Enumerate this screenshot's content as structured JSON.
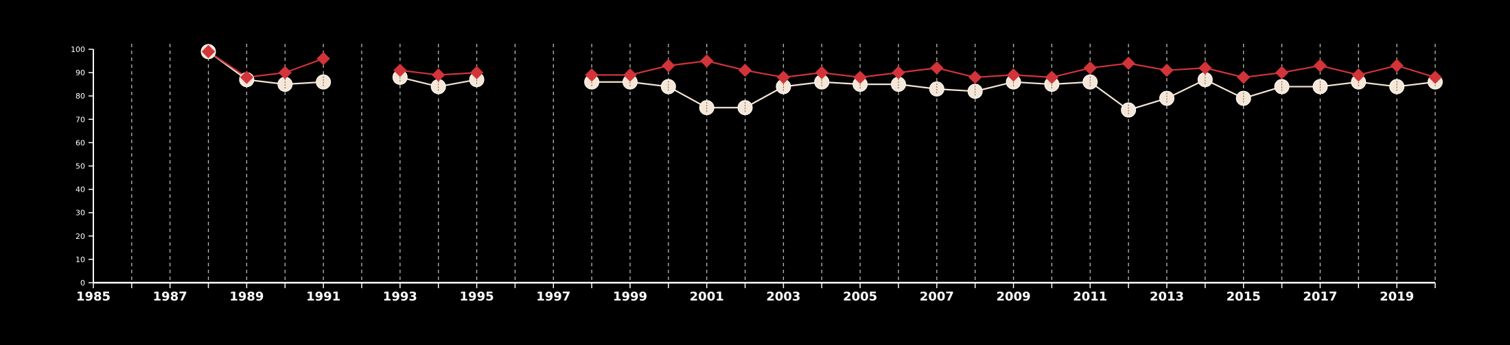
{
  "chart_data": {
    "type": "line",
    "title": "",
    "xlabel": "",
    "ylabel": "",
    "xlim": [
      1985,
      2020
    ],
    "ylim": [
      0,
      100
    ],
    "x_tick_labels": [
      "1985",
      "1987",
      "1989",
      "1991",
      "1993",
      "1995",
      "1997",
      "1999",
      "2001",
      "2003",
      "2005",
      "2007",
      "2009",
      "2011",
      "2013",
      "2015",
      "2017",
      "2019"
    ],
    "y_tick_labels": [
      "0",
      "10",
      "20",
      "30",
      "40",
      "50",
      "60",
      "70",
      "80",
      "90",
      "100"
    ],
    "grid": "vertical dashed lines at each year",
    "legend": "none",
    "series": [
      {
        "marker": "diamond",
        "color": "#d2343a",
        "points": [
          {
            "x": 1988,
            "y": 99
          },
          {
            "x": 1989,
            "y": 88
          },
          {
            "x": 1990,
            "y": 90
          },
          {
            "x": 1991,
            "y": 96
          },
          {
            "x": 1992,
            "y": null
          },
          {
            "x": 1993,
            "y": 91
          },
          {
            "x": 1994,
            "y": 89
          },
          {
            "x": 1995,
            "y": 90
          },
          {
            "x": 1996,
            "y": null
          },
          {
            "x": 1997,
            "y": null
          },
          {
            "x": 1998,
            "y": 89
          },
          {
            "x": 1999,
            "y": 89
          },
          {
            "x": 2000,
            "y": 93
          },
          {
            "x": 2001,
            "y": 95
          },
          {
            "x": 2002,
            "y": 91
          },
          {
            "x": 2003,
            "y": 88
          },
          {
            "x": 2004,
            "y": 90
          },
          {
            "x": 2005,
            "y": 88
          },
          {
            "x": 2006,
            "y": 90
          },
          {
            "x": 2007,
            "y": 92
          },
          {
            "x": 2008,
            "y": 88
          },
          {
            "x": 2009,
            "y": 89
          },
          {
            "x": 2010,
            "y": 88
          },
          {
            "x": 2011,
            "y": 92
          },
          {
            "x": 2012,
            "y": 94
          },
          {
            "x": 2013,
            "y": 91
          },
          {
            "x": 2014,
            "y": 92
          },
          {
            "x": 2015,
            "y": 88
          },
          {
            "x": 2016,
            "y": 90
          },
          {
            "x": 2017,
            "y": 93
          },
          {
            "x": 2018,
            "y": 89
          },
          {
            "x": 2019,
            "y": 93
          },
          {
            "x": 2020,
            "y": 88
          }
        ]
      },
      {
        "marker": "circle",
        "color": "#f5e6d6",
        "points": [
          {
            "x": 1988,
            "y": 99
          },
          {
            "x": 1989,
            "y": 87
          },
          {
            "x": 1990,
            "y": 85
          },
          {
            "x": 1991,
            "y": 86
          },
          {
            "x": 1992,
            "y": null
          },
          {
            "x": 1993,
            "y": 88
          },
          {
            "x": 1994,
            "y": 84
          },
          {
            "x": 1995,
            "y": 87
          },
          {
            "x": 1996,
            "y": null
          },
          {
            "x": 1997,
            "y": null
          },
          {
            "x": 1998,
            "y": 86
          },
          {
            "x": 1999,
            "y": 86
          },
          {
            "x": 2000,
            "y": 84
          },
          {
            "x": 2001,
            "y": 75
          },
          {
            "x": 2002,
            "y": 75
          },
          {
            "x": 2003,
            "y": 84
          },
          {
            "x": 2004,
            "y": 86
          },
          {
            "x": 2005,
            "y": 85
          },
          {
            "x": 2006,
            "y": 85
          },
          {
            "x": 2007,
            "y": 83
          },
          {
            "x": 2008,
            "y": 82
          },
          {
            "x": 2009,
            "y": 86
          },
          {
            "x": 2010,
            "y": 85
          },
          {
            "x": 2011,
            "y": 86
          },
          {
            "x": 2012,
            "y": 74
          },
          {
            "x": 2013,
            "y": 79
          },
          {
            "x": 2014,
            "y": 87
          },
          {
            "x": 2015,
            "y": 79
          },
          {
            "x": 2016,
            "y": 84
          },
          {
            "x": 2017,
            "y": 84
          },
          {
            "x": 2018,
            "y": 86
          },
          {
            "x": 2019,
            "y": 84
          },
          {
            "x": 2020,
            "y": 86
          }
        ]
      }
    ],
    "colors": {
      "background": "#000000",
      "axis": "#ffffff",
      "grid": "#bbbbbb"
    }
  }
}
